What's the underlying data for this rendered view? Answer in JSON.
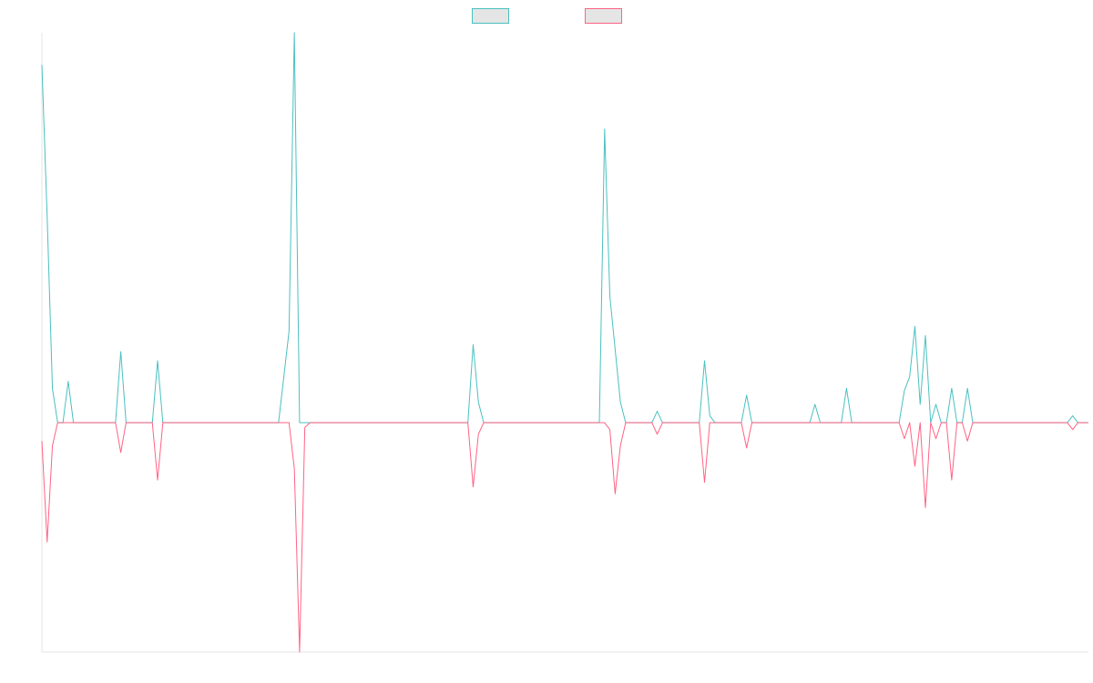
{
  "chart_data": {
    "type": "line",
    "title": "",
    "xlabel": "",
    "ylabel": "",
    "grid": false,
    "legend_position": "top-center",
    "ylim": [
      -100,
      170
    ],
    "point_count": 200,
    "series": [
      {
        "name": "",
        "color": "#4bc0c0",
        "fill": "#e5e5e5",
        "spikes": [
          {
            "x": 0,
            "y": 156
          },
          {
            "x": 1,
            "y": 90
          },
          {
            "x": 2,
            "y": 15
          },
          {
            "x": 5,
            "y": 18
          },
          {
            "x": 15,
            "y": 31
          },
          {
            "x": 22,
            "y": 27
          },
          {
            "x": 46,
            "y": 20
          },
          {
            "x": 47,
            "y": 40
          },
          {
            "x": 48,
            "y": 170
          },
          {
            "x": 82,
            "y": 34
          },
          {
            "x": 83,
            "y": 9
          },
          {
            "x": 107,
            "y": 128
          },
          {
            "x": 108,
            "y": 55
          },
          {
            "x": 109,
            "y": 32
          },
          {
            "x": 110,
            "y": 9
          },
          {
            "x": 117,
            "y": 5
          },
          {
            "x": 126,
            "y": 27
          },
          {
            "x": 127,
            "y": 3
          },
          {
            "x": 134,
            "y": 12
          },
          {
            "x": 147,
            "y": 8
          },
          {
            "x": 153,
            "y": 15
          },
          {
            "x": 164,
            "y": 14
          },
          {
            "x": 165,
            "y": 20
          },
          {
            "x": 166,
            "y": 42
          },
          {
            "x": 167,
            "y": 8
          },
          {
            "x": 168,
            "y": 38
          },
          {
            "x": 170,
            "y": 8
          },
          {
            "x": 173,
            "y": 15
          },
          {
            "x": 176,
            "y": 15
          },
          {
            "x": 196,
            "y": 3
          }
        ]
      },
      {
        "name": "",
        "color": "#ff6384",
        "fill": "#e5e5e5",
        "spikes": [
          {
            "x": 0,
            "y": -8
          },
          {
            "x": 1,
            "y": -52
          },
          {
            "x": 2,
            "y": -10
          },
          {
            "x": 15,
            "y": -13
          },
          {
            "x": 22,
            "y": -25
          },
          {
            "x": 48,
            "y": -20
          },
          {
            "x": 49,
            "y": -100
          },
          {
            "x": 50,
            "y": -2
          },
          {
            "x": 82,
            "y": -28
          },
          {
            "x": 83,
            "y": -5
          },
          {
            "x": 108,
            "y": -3
          },
          {
            "x": 109,
            "y": -31
          },
          {
            "x": 110,
            "y": -10
          },
          {
            "x": 117,
            "y": -5
          },
          {
            "x": 126,
            "y": -26
          },
          {
            "x": 134,
            "y": -11
          },
          {
            "x": 164,
            "y": -7
          },
          {
            "x": 166,
            "y": -19
          },
          {
            "x": 168,
            "y": -37
          },
          {
            "x": 170,
            "y": -7
          },
          {
            "x": 173,
            "y": -25
          },
          {
            "x": 176,
            "y": -8
          },
          {
            "x": 196,
            "y": -3
          }
        ]
      }
    ]
  }
}
